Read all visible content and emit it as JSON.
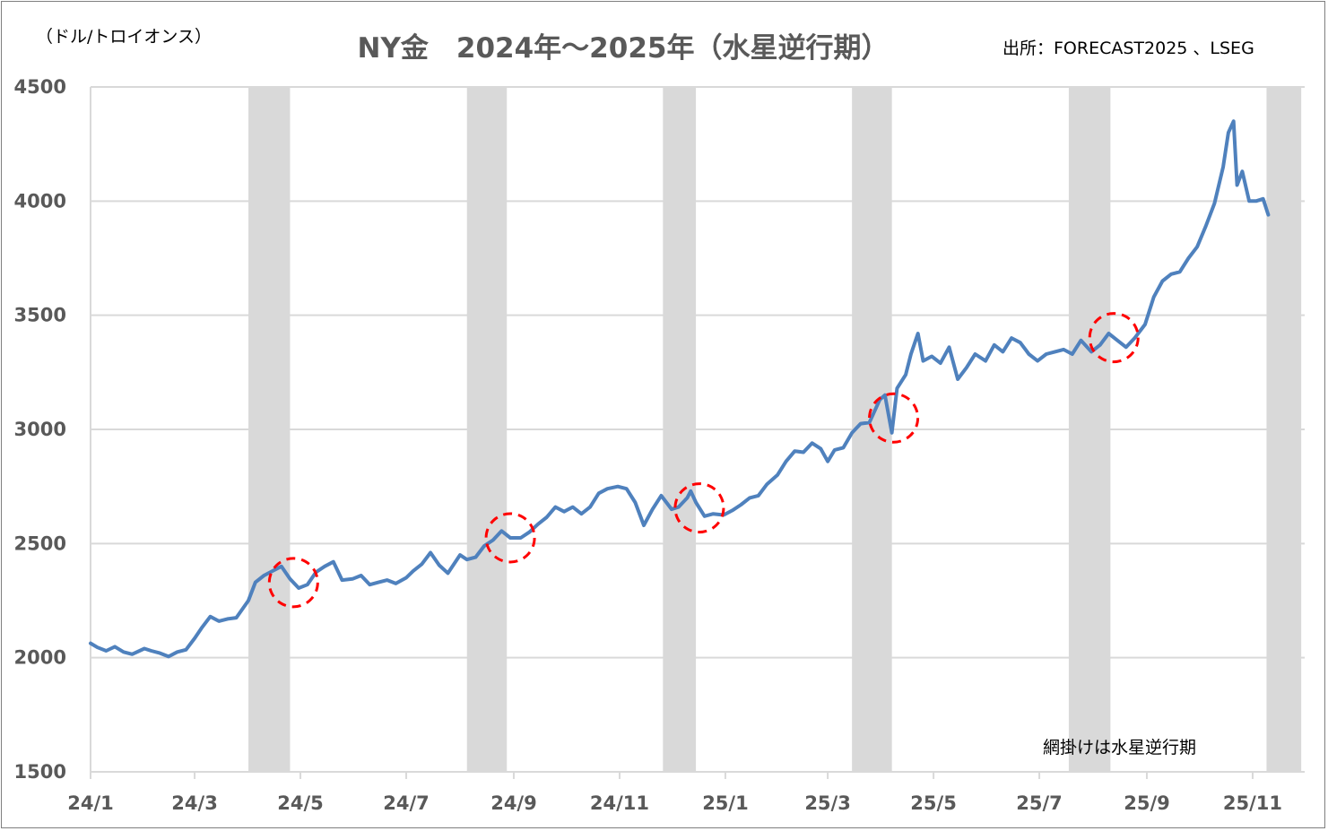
{
  "chart_data": {
    "type": "line",
    "title": "NY金　2024年～2025年（水星逆行期）",
    "unit_label": "（ドル/トロイオンス）",
    "source": "出所：FORECAST2025 、LSEG",
    "note": "網掛けは水星逆行期",
    "ylim": [
      1500,
      4500
    ],
    "y_ticks": [
      "4500",
      "4000",
      "3500",
      "3000",
      "2500",
      "2000",
      "1500"
    ],
    "y_tick_values": [
      4500,
      4000,
      3500,
      3000,
      2500,
      2000,
      1500
    ],
    "x_ticks": [
      "24/1",
      "24/3",
      "24/5",
      "24/7",
      "24/9",
      "24/11",
      "25/1",
      "25/3",
      "25/5",
      "25/7",
      "25/9",
      "25/11"
    ],
    "x_tick_values": [
      "2024-01",
      "2024-03",
      "2024-05",
      "2024-07",
      "2024-09",
      "2024-11",
      "2025-01",
      "2025-03",
      "2025-05",
      "2025-07",
      "2025-09",
      "2025-11"
    ],
    "grid": "horizontal",
    "line_color": "#4f81bd",
    "shade_color": "#d9d9d9",
    "highlight_color": "#ff0000",
    "shaded_periods": [
      [
        "2024-04-01",
        "2024-04-25"
      ],
      [
        "2024-08-05",
        "2024-08-28"
      ],
      [
        "2024-11-26",
        "2024-12-15"
      ],
      [
        "2025-03-15",
        "2025-04-07"
      ],
      [
        "2025-07-18",
        "2025-08-11"
      ],
      [
        "2025-11-09",
        "2025-11-29"
      ]
    ],
    "highlighted_points": [
      "2024-04-27",
      "2024-08-30",
      "2024-12-17",
      "2025-04-08",
      "2025-08-13"
    ],
    "series": [
      {
        "points": [
          [
            "2024-01-01",
            2063
          ],
          [
            "2024-01-05",
            2045
          ],
          [
            "2024-01-10",
            2030
          ],
          [
            "2024-01-15",
            2048
          ],
          [
            "2024-01-20",
            2025
          ],
          [
            "2024-01-25",
            2015
          ],
          [
            "2024-02-01",
            2040
          ],
          [
            "2024-02-05",
            2030
          ],
          [
            "2024-02-10",
            2020
          ],
          [
            "2024-02-15",
            2005
          ],
          [
            "2024-02-20",
            2025
          ],
          [
            "2024-02-25",
            2035
          ],
          [
            "2024-03-01",
            2085
          ],
          [
            "2024-03-05",
            2130
          ],
          [
            "2024-03-10",
            2180
          ],
          [
            "2024-03-15",
            2160
          ],
          [
            "2024-03-20",
            2170
          ],
          [
            "2024-03-25",
            2175
          ],
          [
            "2024-04-01",
            2250
          ],
          [
            "2024-04-05",
            2330
          ],
          [
            "2024-04-10",
            2360
          ],
          [
            "2024-04-15",
            2380
          ],
          [
            "2024-04-20",
            2400
          ],
          [
            "2024-04-25",
            2345
          ],
          [
            "2024-04-30",
            2305
          ],
          [
            "2024-05-05",
            2320
          ],
          [
            "2024-05-10",
            2375
          ],
          [
            "2024-05-15",
            2400
          ],
          [
            "2024-05-20",
            2420
          ],
          [
            "2024-05-25",
            2340
          ],
          [
            "2024-05-31",
            2345
          ],
          [
            "2024-06-05",
            2360
          ],
          [
            "2024-06-10",
            2320
          ],
          [
            "2024-06-15",
            2330
          ],
          [
            "2024-06-20",
            2340
          ],
          [
            "2024-06-25",
            2325
          ],
          [
            "2024-07-01",
            2350
          ],
          [
            "2024-07-05",
            2380
          ],
          [
            "2024-07-10",
            2410
          ],
          [
            "2024-07-15",
            2460
          ],
          [
            "2024-07-20",
            2405
          ],
          [
            "2024-07-25",
            2370
          ],
          [
            "2024-08-01",
            2450
          ],
          [
            "2024-08-05",
            2430
          ],
          [
            "2024-08-10",
            2440
          ],
          [
            "2024-08-15",
            2490
          ],
          [
            "2024-08-20",
            2515
          ],
          [
            "2024-08-25",
            2555
          ],
          [
            "2024-08-30",
            2525
          ],
          [
            "2024-09-05",
            2525
          ],
          [
            "2024-09-10",
            2550
          ],
          [
            "2024-09-15",
            2585
          ],
          [
            "2024-09-20",
            2615
          ],
          [
            "2024-09-25",
            2660
          ],
          [
            "2024-09-30",
            2640
          ],
          [
            "2024-10-05",
            2660
          ],
          [
            "2024-10-10",
            2630
          ],
          [
            "2024-10-15",
            2660
          ],
          [
            "2024-10-20",
            2720
          ],
          [
            "2024-10-25",
            2740
          ],
          [
            "2024-10-31",
            2750
          ],
          [
            "2024-11-05",
            2740
          ],
          [
            "2024-11-10",
            2680
          ],
          [
            "2024-11-15",
            2580
          ],
          [
            "2024-11-20",
            2650
          ],
          [
            "2024-11-25",
            2710
          ],
          [
            "2024-12-01",
            2650
          ],
          [
            "2024-12-05",
            2660
          ],
          [
            "2024-12-10",
            2700
          ],
          [
            "2024-12-12",
            2730
          ],
          [
            "2024-12-15",
            2680
          ],
          [
            "2024-12-20",
            2620
          ],
          [
            "2024-12-25",
            2630
          ],
          [
            "2024-12-31",
            2625
          ],
          [
            "2025-01-05",
            2645
          ],
          [
            "2025-01-10",
            2670
          ],
          [
            "2025-01-15",
            2700
          ],
          [
            "2025-01-20",
            2710
          ],
          [
            "2025-01-25",
            2760
          ],
          [
            "2025-01-31",
            2800
          ],
          [
            "2025-02-05",
            2860
          ],
          [
            "2025-02-10",
            2905
          ],
          [
            "2025-02-15",
            2900
          ],
          [
            "2025-02-20",
            2940
          ],
          [
            "2025-02-25",
            2915
          ],
          [
            "2025-03-01",
            2860
          ],
          [
            "2025-03-05",
            2910
          ],
          [
            "2025-03-10",
            2920
          ],
          [
            "2025-03-15",
            2985
          ],
          [
            "2025-03-20",
            3025
          ],
          [
            "2025-03-25",
            3030
          ],
          [
            "2025-03-31",
            3130
          ],
          [
            "2025-04-03",
            3150
          ],
          [
            "2025-04-07",
            2985
          ],
          [
            "2025-04-10",
            3180
          ],
          [
            "2025-04-15",
            3240
          ],
          [
            "2025-04-18",
            3330
          ],
          [
            "2025-04-22",
            3420
          ],
          [
            "2025-04-25",
            3300
          ],
          [
            "2025-04-30",
            3320
          ],
          [
            "2025-05-05",
            3290
          ],
          [
            "2025-05-10",
            3360
          ],
          [
            "2025-05-15",
            3220
          ],
          [
            "2025-05-20",
            3270
          ],
          [
            "2025-05-25",
            3330
          ],
          [
            "2025-05-31",
            3300
          ],
          [
            "2025-06-05",
            3370
          ],
          [
            "2025-06-10",
            3340
          ],
          [
            "2025-06-15",
            3400
          ],
          [
            "2025-06-20",
            3380
          ],
          [
            "2025-06-25",
            3330
          ],
          [
            "2025-06-30",
            3300
          ],
          [
            "2025-07-05",
            3330
          ],
          [
            "2025-07-10",
            3340
          ],
          [
            "2025-07-15",
            3350
          ],
          [
            "2025-07-20",
            3330
          ],
          [
            "2025-07-25",
            3390
          ],
          [
            "2025-07-31",
            3340
          ],
          [
            "2025-08-05",
            3370
          ],
          [
            "2025-08-10",
            3420
          ],
          [
            "2025-08-15",
            3390
          ],
          [
            "2025-08-20",
            3360
          ],
          [
            "2025-08-25",
            3400
          ],
          [
            "2025-08-31",
            3460
          ],
          [
            "2025-09-05",
            3580
          ],
          [
            "2025-09-10",
            3650
          ],
          [
            "2025-09-15",
            3680
          ],
          [
            "2025-09-20",
            3690
          ],
          [
            "2025-09-25",
            3750
          ],
          [
            "2025-09-30",
            3800
          ],
          [
            "2025-10-05",
            3890
          ],
          [
            "2025-10-10",
            3990
          ],
          [
            "2025-10-15",
            4150
          ],
          [
            "2025-10-18",
            4300
          ],
          [
            "2025-10-21",
            4350
          ],
          [
            "2025-10-23",
            4070
          ],
          [
            "2025-10-26",
            4130
          ],
          [
            "2025-10-30",
            4000
          ],
          [
            "2025-11-03",
            4000
          ],
          [
            "2025-11-07",
            4010
          ],
          [
            "2025-11-10",
            3940
          ]
        ]
      }
    ]
  }
}
